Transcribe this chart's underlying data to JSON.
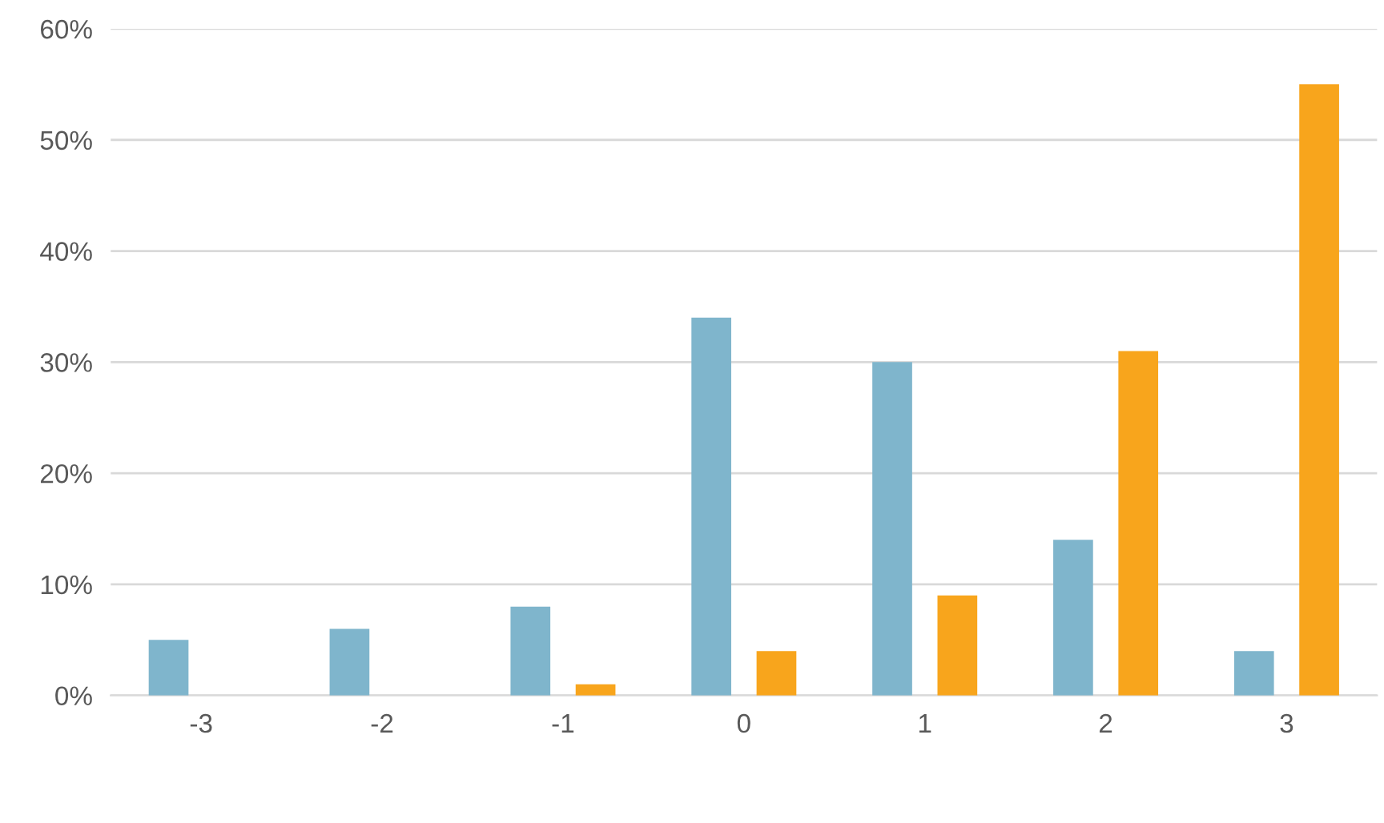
{
  "chart_data": {
    "type": "bar",
    "categories": [
      "-3",
      "-2",
      "-1",
      "0",
      "1",
      "2",
      "3"
    ],
    "series": [
      {
        "color": "#7fb5cc",
        "values": [
          5,
          6,
          8,
          34,
          30,
          14,
          4
        ]
      },
      {
        "color": "#f8a51c",
        "values": [
          0,
          0,
          1,
          4,
          9,
          31,
          55
        ]
      }
    ],
    "ylim": [
      0,
      60
    ],
    "yticks": [
      {
        "value": 0,
        "label": "0%"
      },
      {
        "value": 10,
        "label": "10%"
      },
      {
        "value": 20,
        "label": "20%"
      },
      {
        "value": 30,
        "label": "30%"
      },
      {
        "value": 40,
        "label": "40%"
      },
      {
        "value": 50,
        "label": "50%"
      },
      {
        "value": 60,
        "label": "60%"
      }
    ],
    "grid": "y"
  }
}
